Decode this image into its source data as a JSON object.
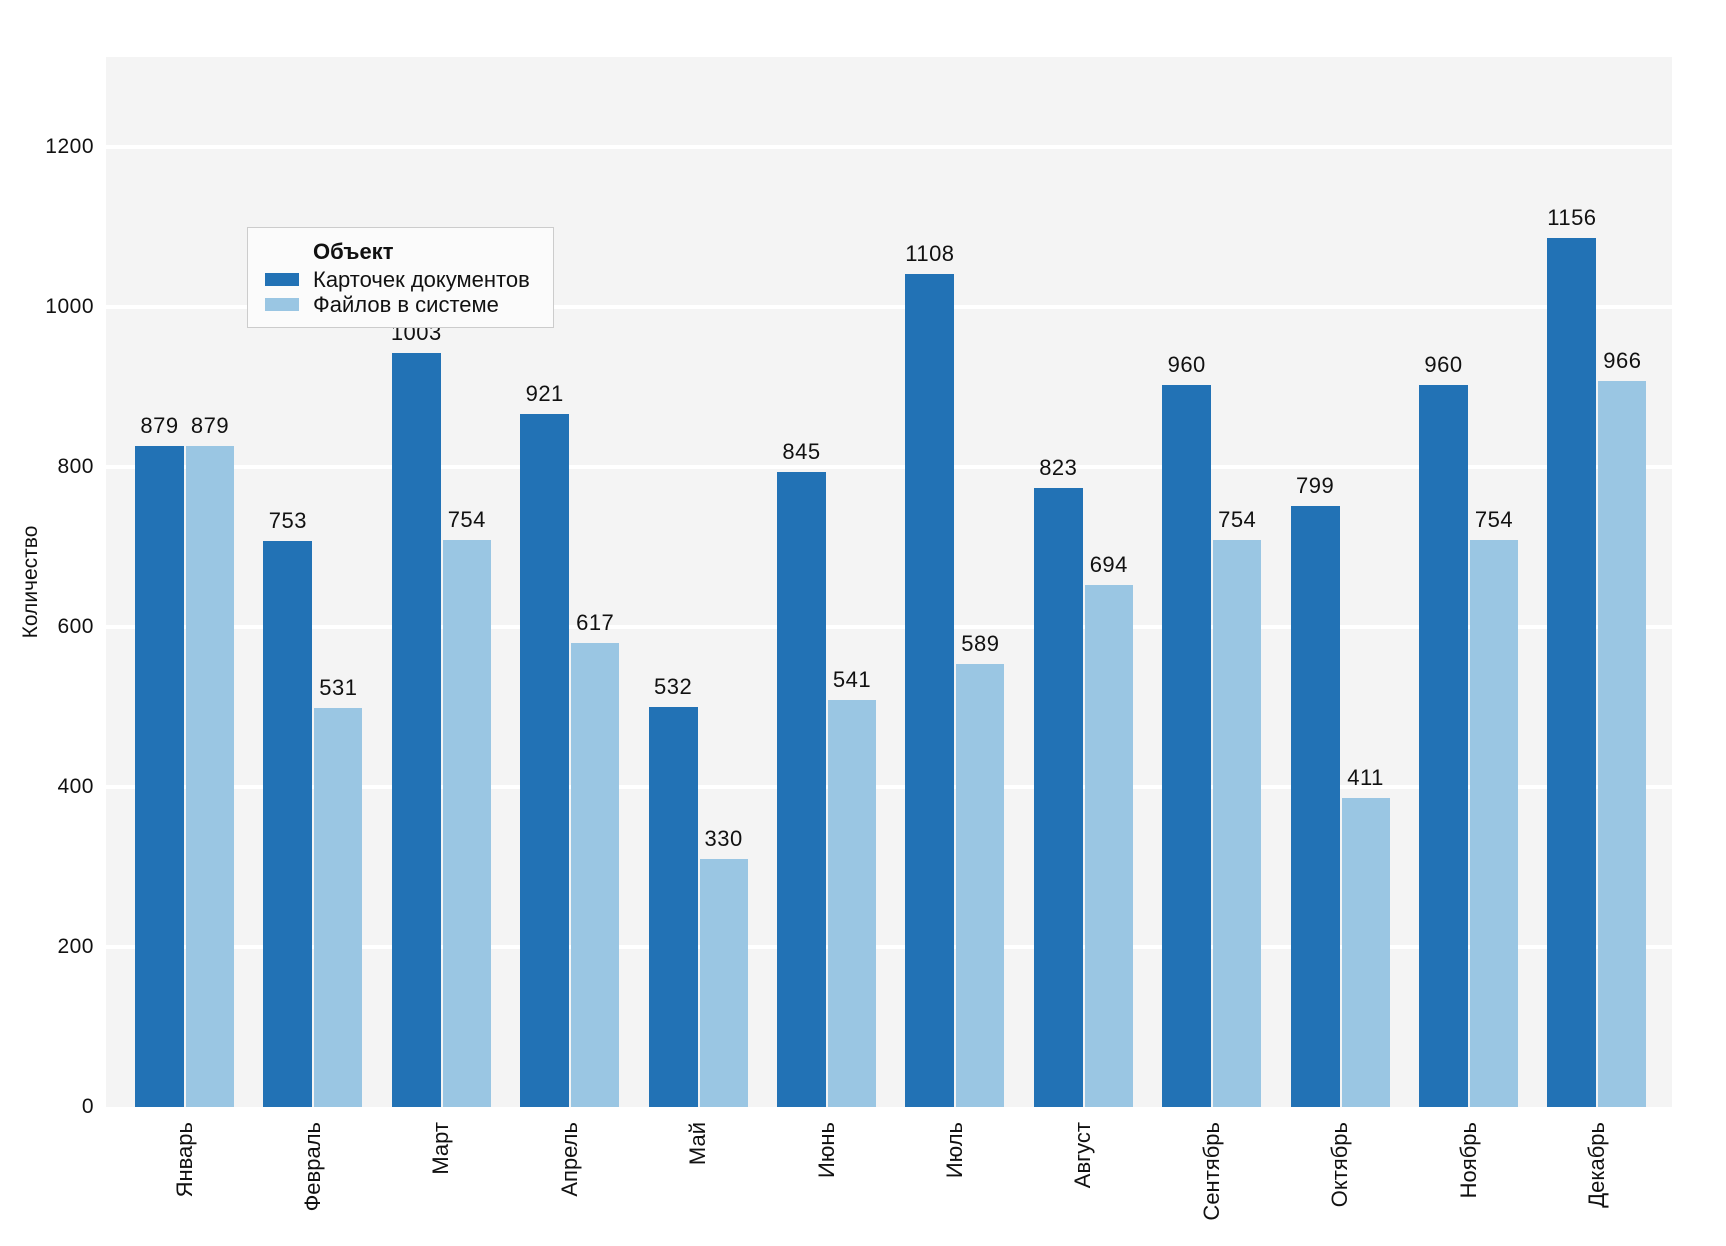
{
  "chart_data": {
    "type": "bar",
    "title": "",
    "xlabel": "",
    "ylabel": "Количество",
    "categories": [
      "Январь",
      "Февраль",
      "Март",
      "Апрель",
      "Май",
      "Июнь",
      "Июль",
      "Август",
      "Сентябрь",
      "Октябрь",
      "Ноябрь",
      "Декабрь"
    ],
    "series": [
      {
        "name": "Карточек документов",
        "color": "#2272b5",
        "values": [
          879,
          753,
          1003,
          921,
          532,
          845,
          1108,
          823,
          960,
          799,
          960,
          1156
        ]
      },
      {
        "name": "Файлов в системе",
        "color": "#9ac6e3",
        "values": [
          879,
          531,
          754,
          617,
          330,
          541,
          589,
          694,
          754,
          411,
          754,
          966
        ]
      }
    ],
    "yticks": [
      0,
      200,
      400,
      600,
      800,
      1000,
      1200
    ],
    "ylim": [
      0,
      1300
    ],
    "grid": true,
    "bar_value_labels": true,
    "legend_title": "Объект",
    "legend_position": "upper-left"
  },
  "colors": {
    "plot_background": "#f4f4f4",
    "gridline": "#ffffff",
    "text": "#111111",
    "legend_background": "#fbfbfb",
    "legend_border": "#cccccc"
  }
}
